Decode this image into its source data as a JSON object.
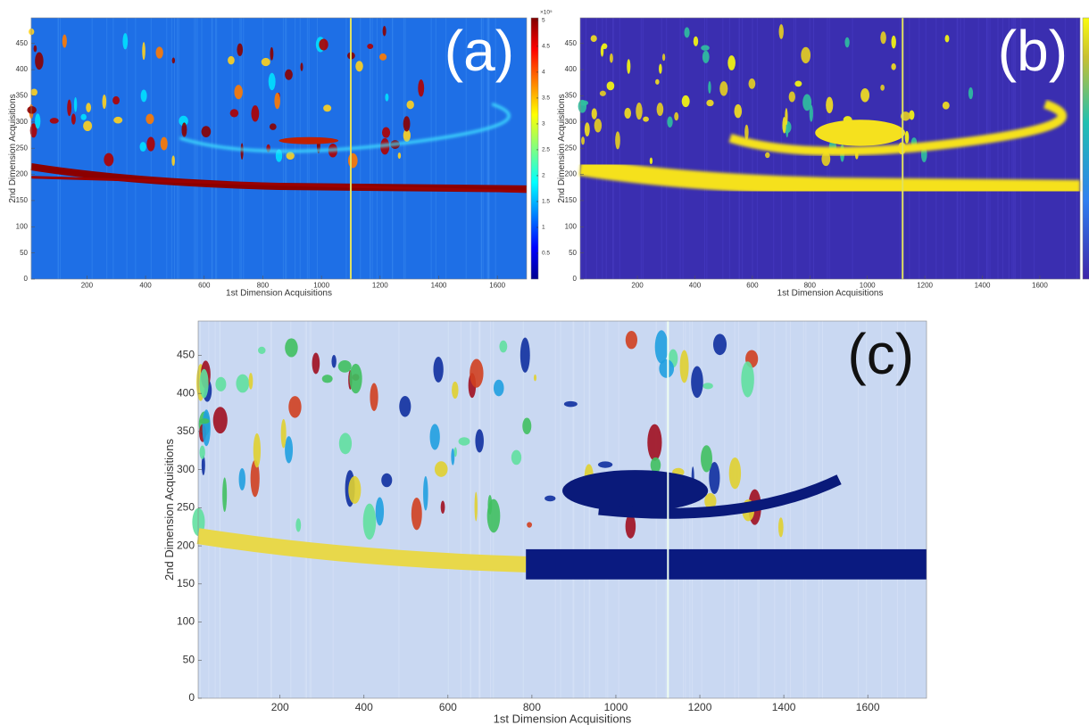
{
  "chart_data": [
    {
      "type": "heatmap",
      "label": "(a)",
      "xlabel": "1st Dimension Acquisitions",
      "ylabel": "2nd Dimension Acquisitions",
      "xlim": [
        10,
        1700
      ],
      "ylim": [
        0,
        499
      ],
      "xticks": [
        200,
        400,
        600,
        800,
        1000,
        1200,
        1400,
        1600
      ],
      "yticks": [
        0,
        50,
        100,
        150,
        200,
        250,
        300,
        350,
        400,
        450
      ],
      "colorbar": {
        "lim": [
          0,
          5.05
        ],
        "ticks": [
          0.5,
          1,
          1.5,
          2,
          2.5,
          3,
          3.5,
          4,
          4.5,
          5
        ],
        "exponent_label": "×10⁵"
      }
    },
    {
      "type": "heatmap",
      "label": "(b)",
      "xlabel": "1st Dimension Acquisitions",
      "ylabel": "2nd Dimension Acquisitions",
      "xlim": [
        1,
        1740
      ],
      "ylim": [
        0,
        499
      ],
      "xticks": [
        200,
        400,
        600,
        800,
        1000,
        1200,
        1400,
        1600
      ],
      "yticks": [
        0,
        50,
        100,
        150,
        200,
        250,
        300,
        350,
        400,
        450
      ]
    },
    {
      "type": "heatmap",
      "label": "(c)",
      "xlabel": "1st Dimension Acquisitions",
      "ylabel": "2nd Dimension Acquisitions",
      "xlim": [
        5,
        1740
      ],
      "ylim": [
        0,
        495
      ],
      "xticks": [
        200,
        400,
        600,
        800,
        1000,
        1200,
        1400,
        1600
      ],
      "yticks": [
        0,
        50,
        100,
        150,
        200,
        250,
        300,
        350,
        400,
        450
      ]
    }
  ]
}
